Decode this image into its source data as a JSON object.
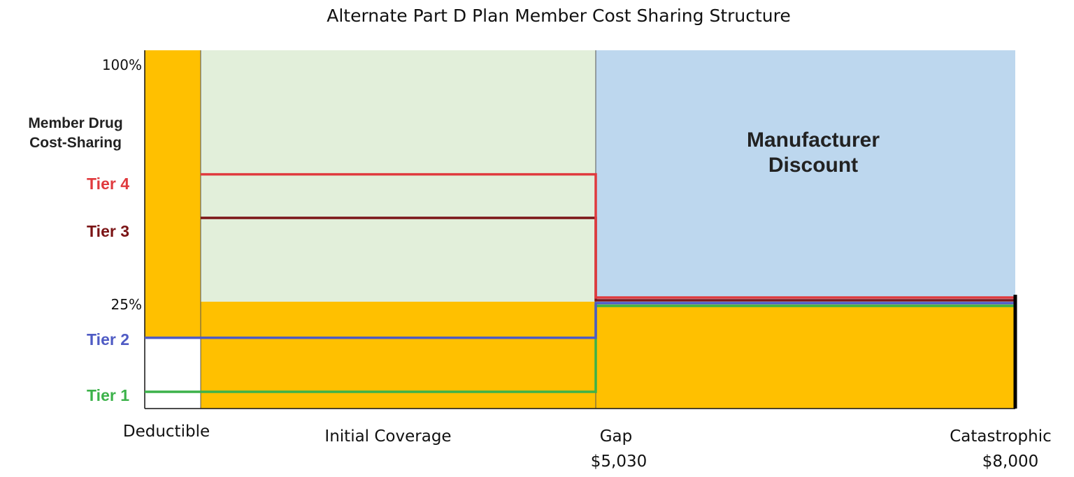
{
  "chart_data": {
    "type": "area",
    "title": "Alternate Part D Plan Member Cost Sharing Structure",
    "ylabel": [
      "Member Drug",
      "Cost-Sharing"
    ],
    "y_ticks": [
      "100%",
      "25%"
    ],
    "phases": [
      "Deductible",
      "Initial Coverage",
      "Gap",
      "Catastrophic"
    ],
    "x_amounts": [
      "$5,030",
      "$8,000"
    ],
    "region_label": [
      "Manufacturer",
      "Discount"
    ],
    "tiers": [
      {
        "name": "Tier 4",
        "color": "#e03a3e",
        "initial": 0.63,
        "gap": 0.25
      },
      {
        "name": "Tier 3",
        "color": "#7b1416",
        "initial": 0.5,
        "gap": 0.25
      },
      {
        "name": "Tier 2",
        "color": "#4f5bc4",
        "initial": 0.15,
        "gap": 0.25
      },
      {
        "name": "Tier 1",
        "color": "#3cb24a",
        "initial": 0.0,
        "gap": 0.25
      }
    ],
    "colors": {
      "member": "#ffc000",
      "plan": "#e2efda",
      "manufacturer": "#bdd7ee"
    }
  }
}
